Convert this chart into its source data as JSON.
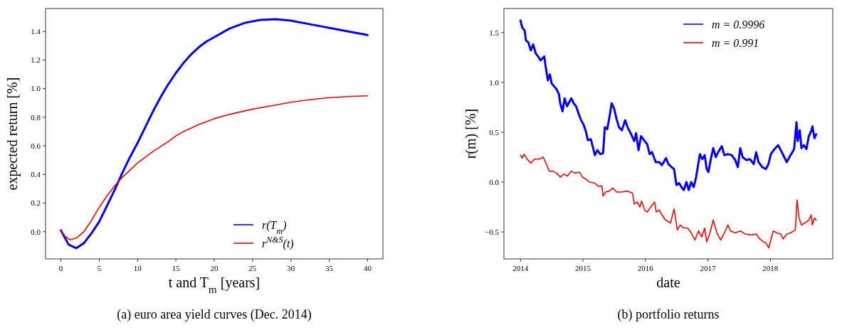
{
  "chart_data": [
    {
      "type": "line",
      "title": "(a) euro area yield curves (Dec. 2014)",
      "xlabel": "t and T$_{m}$ [years]",
      "ylabel": "expected return [%]",
      "xlim": [
        -2,
        42
      ],
      "xticks": [
        0,
        5,
        10,
        15,
        20,
        25,
        30,
        35,
        40
      ],
      "ylim": [
        -0.19,
        1.56
      ],
      "yticks": [
        {
          "value": 0,
          "label": "0.0"
        },
        0.2,
        0.4,
        0.6,
        0.8,
        {
          "value": 1,
          "label": "1.0"
        },
        1.2,
        1.4
      ],
      "legend": "bottom right",
      "series": [
        {
          "name": "r(T$_{m}$)",
          "color": "#0000ff",
          "x": [
            0,
            1,
            2,
            3,
            4,
            5,
            6,
            7,
            8,
            9,
            10,
            11,
            12,
            13,
            14,
            15,
            16,
            17,
            18,
            19,
            20,
            22,
            24,
            26,
            28,
            30,
            32,
            34,
            36,
            38,
            40
          ],
          "values": [
            0.01,
            -0.09,
            -0.115,
            -0.08,
            -0.01,
            0.07,
            0.18,
            0.29,
            0.41,
            0.52,
            0.62,
            0.73,
            0.84,
            0.94,
            1.03,
            1.11,
            1.18,
            1.24,
            1.29,
            1.33,
            1.36,
            1.42,
            1.46,
            1.48,
            1.485,
            1.475,
            1.455,
            1.435,
            1.415,
            1.395,
            1.375
          ]
        },
        {
          "name": "r$^{N&S}$(t)",
          "color": "#ff0000",
          "x": [
            0,
            0.5,
            1.2,
            2,
            3,
            4,
            5,
            6,
            7,
            8,
            9,
            10,
            12,
            14,
            15,
            16,
            18,
            20,
            22,
            25,
            28,
            30,
            32,
            35,
            38,
            40
          ],
          "values": [
            0.01,
            -0.03,
            -0.057,
            -0.045,
            0.0,
            0.08,
            0.17,
            0.25,
            0.32,
            0.38,
            0.43,
            0.48,
            0.56,
            0.63,
            0.67,
            0.7,
            0.75,
            0.79,
            0.82,
            0.857,
            0.885,
            0.905,
            0.92,
            0.937,
            0.946,
            0.95
          ]
        }
      ]
    },
    {
      "type": "line",
      "title": "(b) portfolio returns",
      "xlabel": "date",
      "ylabel": "r(m) [%]",
      "xlim": [
        "2013-09-26",
        "2019-01-01"
      ],
      "xticks": [
        {
          "value": "2014",
          "label": "2014"
        },
        {
          "value": "2015",
          "label": "2015"
        },
        {
          "value": "2016",
          "label": "2016"
        },
        {
          "value": "2017",
          "label": "2017"
        },
        {
          "value": "2018",
          "label": "2018"
        }
      ],
      "ylim": [
        -0.77,
        1.74
      ],
      "yticks": [
        {
          "value": -0.5,
          "label": "−0.5"
        },
        {
          "value": 0,
          "label": "0.0"
        },
        0.5,
        {
          "value": 1,
          "label": "1.0"
        },
        1.5
      ],
      "legend": "top right",
      "series": [
        {
          "name": "m = 0.9996",
          "color": "#0000ff",
          "x": [
            "2014-01-01",
            "2014-01-11",
            "2014-01-25",
            "2014-02-02",
            "2014-02-16",
            "2014-03-02",
            "2014-03-16",
            "2014-03-31",
            "2014-04-14",
            "2014-04-28",
            "2014-05-20",
            "2014-05-27",
            "2014-06-10",
            "2014-06-22",
            "2014-07-02",
            "2014-07-16",
            "2014-07-31",
            "2014-08-14",
            "2014-08-21",
            "2014-09-04",
            "2014-09-16",
            "2014-09-30",
            "2014-10-25",
            "2014-11-08",
            "2014-11-22",
            "2014-12-06",
            "2014-12-21",
            "2015-01-04",
            "2015-01-18",
            "2015-01-30",
            "2015-02-16",
            "2015-03-02",
            "2015-03-12",
            "2015-03-27",
            "2015-04-12",
            "2015-04-29",
            "2015-05-09",
            "2015-05-23",
            "2015-06-06",
            "2015-06-18",
            "2015-07-02",
            "2015-07-17",
            "2015-07-31",
            "2015-08-17",
            "2015-09-05",
            "2015-09-19",
            "2015-10-10",
            "2015-10-28",
            "2015-11-08",
            "2015-11-22",
            "2015-12-07",
            "2015-12-24",
            "2016-01-12",
            "2016-01-26",
            "2016-02-09",
            "2016-03-02",
            "2016-03-23",
            "2016-04-07",
            "2016-05-01",
            "2016-05-15",
            "2016-06-03",
            "2016-06-17",
            "2016-07-01",
            "2016-07-16",
            "2016-07-30",
            "2016-08-13",
            "2016-08-28",
            "2016-09-11",
            "2016-09-25",
            "2016-10-10",
            "2016-10-24",
            "2016-11-15",
            "2016-11-29",
            "2016-12-13",
            "2016-12-25",
            "2017-01-04",
            "2017-01-18",
            "2017-02-01",
            "2017-02-16",
            "2017-03-02",
            "2017-03-23",
            "2017-04-07",
            "2017-04-28",
            "2017-05-20",
            "2017-06-10",
            "2017-06-25",
            "2017-07-09",
            "2017-07-23",
            "2017-08-14",
            "2017-09-04",
            "2017-09-26",
            "2017-10-10",
            "2017-10-24",
            "2017-11-15",
            "2017-12-06",
            "2017-12-21",
            "2018-01-04",
            "2018-01-25",
            "2018-02-16",
            "2018-03-09",
            "2018-04-07",
            "2018-04-29",
            "2018-05-20",
            "2018-06-03",
            "2018-06-10",
            "2018-06-22",
            "2018-07-02",
            "2018-07-16",
            "2018-07-31",
            "2018-08-14",
            "2018-08-28",
            "2018-09-04",
            "2018-09-16",
            "2018-09-26"
          ],
          "values": [
            1.62,
            1.55,
            1.52,
            1.42,
            1.4,
            1.32,
            1.38,
            1.29,
            1.26,
            1.22,
            1.26,
            1.17,
            1.02,
            1.08,
            0.99,
            0.96,
            0.93,
            0.88,
            0.79,
            0.71,
            0.84,
            0.76,
            0.84,
            0.79,
            0.76,
            0.69,
            0.62,
            0.58,
            0.51,
            0.42,
            0.43,
            0.34,
            0.27,
            0.32,
            0.28,
            0.29,
            0.55,
            0.53,
            0.66,
            0.79,
            0.74,
            0.63,
            0.55,
            0.52,
            0.62,
            0.55,
            0.48,
            0.41,
            0.49,
            0.32,
            0.46,
            0.42,
            0.38,
            0.28,
            0.3,
            0.2,
            0.2,
            0.17,
            0.24,
            0.18,
            0.15,
            0.13,
            -0.03,
            -0.01,
            -0.05,
            -0.08,
            0.0,
            -0.08,
            0.0,
            -0.05,
            0.05,
            0.28,
            0.23,
            0.27,
            0.13,
            0.1,
            0.23,
            0.34,
            0.25,
            0.3,
            0.36,
            0.27,
            0.28,
            0.27,
            0.22,
            0.15,
            0.34,
            0.25,
            0.22,
            0.23,
            0.18,
            0.3,
            0.2,
            0.15,
            0.13,
            0.18,
            0.28,
            0.33,
            0.37,
            0.3,
            0.2,
            0.27,
            0.33,
            0.6,
            0.41,
            0.52,
            0.34,
            0.37,
            0.33,
            0.46,
            0.51,
            0.56,
            0.44,
            0.48
          ]
        },
        {
          "name": "m = 0.991",
          "color": "#ff0000",
          "x": [
            "2014-01-01",
            "2014-01-11",
            "2014-01-21",
            "2014-02-09",
            "2014-03-02",
            "2014-03-24",
            "2014-04-21",
            "2014-05-13",
            "2014-05-27",
            "2014-06-18",
            "2014-07-09",
            "2014-07-31",
            "2014-08-21",
            "2014-09-12",
            "2014-10-03",
            "2014-10-25",
            "2014-11-15",
            "2014-12-14",
            "2014-12-28",
            "2015-01-18",
            "2015-02-09",
            "2015-03-10",
            "2015-03-31",
            "2015-04-22",
            "2015-04-29",
            "2015-05-13",
            "2015-06-04",
            "2015-06-25",
            "2015-07-17",
            "2015-08-14",
            "2015-09-19",
            "2015-10-18",
            "2015-10-28",
            "2015-11-15",
            "2015-11-30",
            "2015-12-10",
            "2015-12-28",
            "2016-01-12",
            "2016-02-02",
            "2016-02-24",
            "2016-03-05",
            "2016-03-23",
            "2016-04-07",
            "2016-04-28",
            "2016-05-27",
            "2016-06-17",
            "2016-07-06",
            "2016-07-23",
            "2016-08-13",
            "2016-09-04",
            "2016-09-25",
            "2016-10-17",
            "2016-11-07",
            "2016-11-26",
            "2016-12-13",
            "2016-12-25",
            "2017-01-11",
            "2017-02-01",
            "2017-02-23",
            "2017-03-16",
            "2017-04-07",
            "2017-04-28",
            "2017-05-13",
            "2017-06-10",
            "2017-07-09",
            "2017-08-06",
            "2017-09-11",
            "2017-10-10",
            "2017-10-31",
            "2017-11-22",
            "2017-12-06",
            "2017-12-23",
            "2018-01-07",
            "2018-01-18",
            "2018-02-09",
            "2018-03-02",
            "2018-03-17",
            "2018-04-07",
            "2018-04-29",
            "2018-05-27",
            "2018-06-06",
            "2018-06-18",
            "2018-07-02",
            "2018-07-23",
            "2018-08-14",
            "2018-08-28",
            "2018-09-04",
            "2018-09-16",
            "2018-09-26"
          ],
          "values": [
            0.27,
            0.24,
            0.28,
            0.23,
            0.19,
            0.23,
            0.23,
            0.25,
            0.2,
            0.11,
            0.11,
            0.09,
            0.05,
            0.08,
            0.06,
            0.11,
            0.09,
            0.1,
            0.05,
            0.03,
            0.0,
            -0.01,
            -0.04,
            -0.04,
            -0.14,
            -0.1,
            -0.09,
            -0.06,
            -0.1,
            -0.1,
            -0.09,
            -0.11,
            -0.22,
            -0.2,
            -0.25,
            -0.19,
            -0.28,
            -0.3,
            -0.25,
            -0.2,
            -0.3,
            -0.28,
            -0.33,
            -0.38,
            -0.41,
            -0.27,
            -0.48,
            -0.43,
            -0.46,
            -0.46,
            -0.51,
            -0.58,
            -0.49,
            -0.55,
            -0.46,
            -0.6,
            -0.52,
            -0.38,
            -0.51,
            -0.58,
            -0.51,
            -0.43,
            -0.49,
            -0.51,
            -0.49,
            -0.52,
            -0.53,
            -0.52,
            -0.57,
            -0.6,
            -0.61,
            -0.66,
            -0.56,
            -0.49,
            -0.51,
            -0.52,
            -0.57,
            -0.52,
            -0.51,
            -0.48,
            -0.18,
            -0.36,
            -0.43,
            -0.41,
            -0.38,
            -0.33,
            -0.43,
            -0.36,
            -0.38
          ]
        }
      ]
    }
  ]
}
